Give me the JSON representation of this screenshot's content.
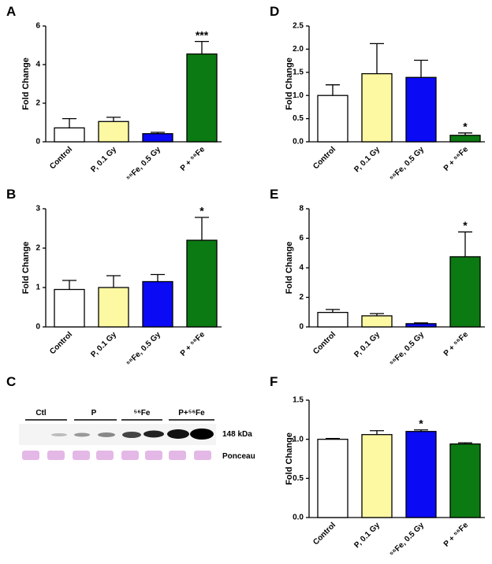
{
  "chart_data": [
    {
      "type": "bar",
      "label": "A",
      "ylabel": "Fold Change",
      "categories": [
        "Control",
        "P, 0.1 Gy",
        "⁵⁶Fe, 0.5 Gy",
        "P + ⁵⁶Fe"
      ],
      "values": [
        0.72,
        1.05,
        0.42,
        4.55
      ],
      "errors": [
        0.48,
        0.22,
        0.07,
        0.65
      ],
      "colors": [
        "#ffffff",
        "#fdf9a3",
        "#0a0af5",
        "#0b7a12"
      ],
      "ylim": [
        0,
        6
      ],
      "yticks": [
        0,
        2,
        4,
        6
      ],
      "annotations": [
        {
          "x": "P + ⁵⁶Fe",
          "text": "***"
        }
      ]
    },
    {
      "type": "bar",
      "label": "B",
      "ylabel": "Fold Change",
      "categories": [
        "Control",
        "P, 0.1 Gy",
        "⁵⁶Fe, 0.5 Gy",
        "P + ⁵⁶Fe"
      ],
      "values": [
        0.95,
        1.0,
        1.15,
        2.2
      ],
      "errors": [
        0.23,
        0.3,
        0.18,
        0.58
      ],
      "colors": [
        "#ffffff",
        "#fdf9a3",
        "#0a0af5",
        "#0b7a12"
      ],
      "ylim": [
        0,
        3
      ],
      "yticks": [
        0,
        1,
        2,
        3
      ],
      "annotations": [
        {
          "x": "P + ⁵⁶Fe",
          "text": "*"
        }
      ]
    },
    {
      "type": "bar",
      "label": "D",
      "ylabel": "Fold Change",
      "categories": [
        "Control",
        "P, 0.1 Gy",
        "⁵⁶Fe, 0.5 Gy",
        "P + ⁵⁶Fe"
      ],
      "values": [
        1.0,
        1.47,
        1.39,
        0.14
      ],
      "errors": [
        0.23,
        0.65,
        0.37,
        0.05
      ],
      "colors": [
        "#ffffff",
        "#fdf9a3",
        "#0a0af5",
        "#0b7a12"
      ],
      "ylim": [
        0,
        2.5
      ],
      "yticks": [
        {
          "value": 0,
          "label": "0.0"
        },
        0.5,
        {
          "value": 1,
          "label": "1.0"
        },
        1.5,
        {
          "value": 2,
          "label": "2.0"
        },
        2.5
      ],
      "annotations": [
        {
          "x": "P + ⁵⁶Fe",
          "text": "*"
        }
      ]
    },
    {
      "type": "bar",
      "label": "E",
      "ylabel": "Fold Change",
      "categories": [
        "Control",
        "P, 0.1 Gy",
        "⁵⁶Fe, 0.5 Gy",
        "P + ⁵⁶Fe"
      ],
      "values": [
        0.98,
        0.75,
        0.22,
        4.75
      ],
      "errors": [
        0.2,
        0.15,
        0.05,
        1.68
      ],
      "colors": [
        "#ffffff",
        "#fdf9a3",
        "#0a0af5",
        "#0b7a12"
      ],
      "ylim": [
        0,
        8
      ],
      "yticks": [
        0,
        2,
        4,
        6,
        8
      ],
      "annotations": [
        {
          "x": "P + ⁵⁶Fe",
          "text": "*"
        }
      ]
    },
    {
      "type": "bar",
      "label": "F",
      "ylabel": "Fold Change",
      "categories": [
        "Control",
        "P, 0.1 Gy",
        "⁵⁶Fe, 0.5 Gy",
        "P + ⁵⁶Fe"
      ],
      "values": [
        1.0,
        1.06,
        1.1,
        0.94
      ],
      "errors": [
        0.01,
        0.05,
        0.02,
        0.015
      ],
      "colors": [
        "#ffffff",
        "#fdf9a3",
        "#0a0af5",
        "#0b7a12"
      ],
      "ylim": [
        0,
        1.5
      ],
      "yticks": [
        {
          "value": 0,
          "label": "0.0"
        },
        0.5,
        {
          "value": 1,
          "label": "1.0"
        },
        1.5
      ],
      "annotations": [
        {
          "x": "⁵⁶Fe, 0.5 Gy",
          "text": "*"
        }
      ]
    }
  ],
  "blot": {
    "label": "C",
    "groups": [
      "Ctl",
      "P",
      "⁵⁶Fe",
      "P+⁵⁶Fe"
    ],
    "band_label": "148 kDa",
    "stain_label": "Ponceau"
  }
}
